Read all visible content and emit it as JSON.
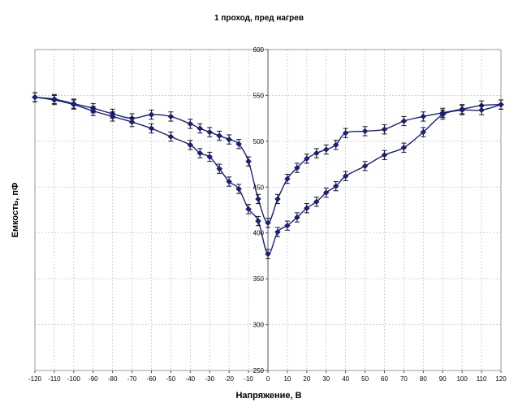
{
  "chart_data": {
    "type": "line",
    "title": "1 проход, пред нагрев",
    "xlabel": "Напряжение, В",
    "ylabel": "Емкость, пФ",
    "xlim": [
      -120,
      120
    ],
    "ylim": [
      250,
      600
    ],
    "xticks": [
      -120,
      -110,
      -100,
      -90,
      -80,
      -70,
      -60,
      -50,
      -40,
      -30,
      -20,
      -10,
      0,
      10,
      20,
      30,
      40,
      50,
      60,
      70,
      80,
      90,
      100,
      110,
      120
    ],
    "yticks": [
      250,
      300,
      350,
      400,
      450,
      500,
      550,
      600
    ],
    "grid": true,
    "legend": "none",
    "color": "#1a1f7a",
    "error_bar": 5,
    "series": [
      {
        "x": [
          -120,
          -110,
          -100,
          -90,
          -80,
          -70,
          -60,
          -50,
          -40,
          -35,
          -30,
          -25,
          -20,
          -15,
          -10,
          -5,
          0,
          5,
          10,
          15,
          20,
          25,
          30,
          35,
          40,
          50,
          60,
          70,
          80,
          90,
          100,
          110,
          120
        ],
        "values": [
          548,
          546,
          541,
          536,
          530,
          525,
          529,
          527,
          519,
          514,
          510,
          506,
          502,
          497,
          478,
          437,
          411,
          437,
          459,
          471,
          481,
          487,
          491,
          496,
          509,
          511,
          513,
          522,
          527,
          531,
          535,
          539,
          540
        ]
      },
      {
        "x": [
          -120,
          -110,
          -100,
          -90,
          -80,
          -70,
          -60,
          -50,
          -40,
          -35,
          -30,
          -25,
          -20,
          -15,
          -10,
          -5,
          0,
          5,
          10,
          15,
          20,
          25,
          30,
          35,
          40,
          50,
          60,
          70,
          80,
          90,
          100,
          110,
          120
        ],
        "values": [
          548,
          545,
          540,
          533,
          527,
          521,
          514,
          505,
          496,
          487,
          483,
          470,
          456,
          448,
          426,
          413,
          377,
          401,
          408,
          417,
          427,
          434,
          444,
          451,
          462,
          473,
          485,
          493,
          510,
          529,
          534,
          534,
          540
        ]
      }
    ]
  }
}
